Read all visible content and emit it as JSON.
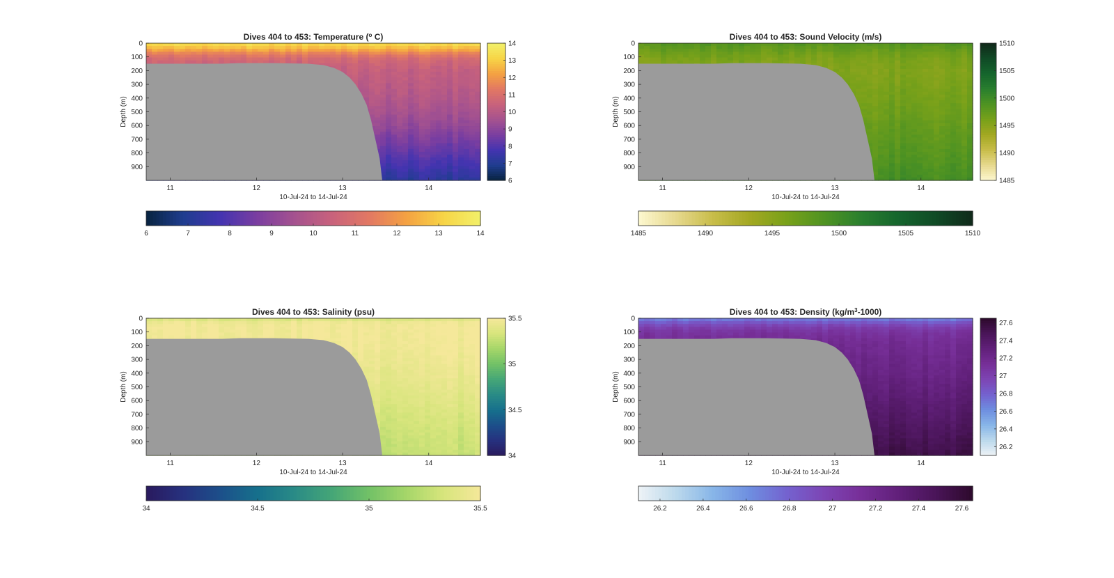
{
  "figure": {
    "background": "#ffffff",
    "land_color": "#9b9b9b"
  },
  "chart_data": [
    {
      "type": "heatmap",
      "title_parts": [
        "Dives 404 to 453: Temperature (",
        "o",
        " C)"
      ],
      "title_sup": true,
      "variable": "temperature",
      "xlabel": "10-Jul-24 to 14-Jul-24",
      "ylabel": "Depth (m)",
      "xlim": [
        10.72,
        14.6
      ],
      "ylim": [
        0,
        1000
      ],
      "x_ticks": [
        11,
        12,
        13,
        14
      ],
      "x_tick_labels": [
        "11",
        "12",
        "13",
        "14"
      ],
      "y_ticks": [
        0,
        100,
        200,
        300,
        400,
        500,
        600,
        700,
        800,
        900
      ],
      "y_tick_labels": [
        "0",
        "100",
        "200",
        "300",
        "400",
        "500",
        "600",
        "700",
        "800",
        "900"
      ],
      "clim": [
        6,
        14
      ],
      "colorbar_ticks": [
        6,
        7,
        8,
        9,
        10,
        11,
        12,
        13,
        14
      ],
      "colorbar_tick_labels": [
        "6",
        "7",
        "8",
        "9",
        "10",
        "11",
        "12",
        "13",
        "14"
      ],
      "colormap": [
        "#08233f",
        "#1f3d8f",
        "#4434b0",
        "#7b3ea0",
        "#a5528f",
        "#c8627c",
        "#e27863",
        "#f4a142",
        "#f7d446",
        "#f2f06a"
      ],
      "profile": {
        "depths": [
          0,
          40,
          80,
          120,
          200,
          400,
          600,
          800,
          1000
        ],
        "values": [
          13.4,
          12.6,
          11.4,
          10.7,
          10.3,
          9.9,
          9.2,
          8.2,
          7.2
        ]
      },
      "seafloor": {
        "x": [
          10.72,
          11.6,
          11.8,
          12.2,
          12.6,
          12.78,
          12.9,
          13.0,
          13.08,
          13.15,
          13.22,
          13.28,
          13.33,
          13.38,
          13.43,
          13.46,
          14.6
        ],
        "depth": [
          150,
          150,
          145,
          145,
          150,
          160,
          180,
          210,
          250,
          300,
          370,
          450,
          560,
          700,
          840,
          1000,
          1000
        ]
      }
    },
    {
      "type": "heatmap",
      "title_parts": [
        "Dives 404 to 453: Sound Velocity (m/s)"
      ],
      "variable": "sound_velocity",
      "xlabel": "10-Jul-24 to 14-Jul-24",
      "ylabel": "Depth (m)",
      "xlim": [
        10.72,
        14.6
      ],
      "ylim": [
        0,
        1000
      ],
      "x_ticks": [
        11,
        12,
        13,
        14
      ],
      "x_tick_labels": [
        "11",
        "12",
        "13",
        "14"
      ],
      "y_ticks": [
        0,
        100,
        200,
        300,
        400,
        500,
        600,
        700,
        800,
        900
      ],
      "y_tick_labels": [
        "0",
        "100",
        "200",
        "300",
        "400",
        "500",
        "600",
        "700",
        "800",
        "900"
      ],
      "clim": [
        1485,
        1510
      ],
      "colorbar_ticks": [
        1485,
        1490,
        1495,
        1500,
        1505,
        1510
      ],
      "colorbar_tick_labels": [
        "1485",
        "1490",
        "1495",
        "1500",
        "1505",
        "1510"
      ],
      "colormap": [
        "#fdf8d0",
        "#e7d98f",
        "#c8bd4a",
        "#a3a822",
        "#78a11a",
        "#4f9322",
        "#2a7f2e",
        "#15652d",
        "#104b26",
        "#102a1a"
      ],
      "profile": {
        "depths": [
          0,
          40,
          80,
          120,
          200,
          400,
          600,
          800,
          1000
        ],
        "values": [
          1498.5,
          1497.5,
          1496.5,
          1495.8,
          1495.4,
          1496.2,
          1497.3,
          1498.3,
          1499.5
        ]
      },
      "seafloor": {
        "x": [
          10.72,
          11.6,
          11.8,
          12.2,
          12.6,
          12.78,
          12.9,
          13.0,
          13.08,
          13.15,
          13.22,
          13.28,
          13.33,
          13.38,
          13.43,
          13.46,
          14.6
        ],
        "depth": [
          150,
          150,
          145,
          145,
          150,
          160,
          180,
          210,
          250,
          300,
          370,
          450,
          560,
          700,
          840,
          1000,
          1000
        ]
      }
    },
    {
      "type": "heatmap",
      "title_parts": [
        "Dives 404 to 453: Salinity (psu)"
      ],
      "variable": "salinity",
      "xlabel": "10-Jul-24 to 14-Jul-24",
      "ylabel": "Depth (m)",
      "xlim": [
        10.72,
        14.6
      ],
      "ylim": [
        0,
        1000
      ],
      "x_ticks": [
        11,
        12,
        13,
        14
      ],
      "x_tick_labels": [
        "11",
        "12",
        "13",
        "14"
      ],
      "y_ticks": [
        0,
        100,
        200,
        300,
        400,
        500,
        600,
        700,
        800,
        900
      ],
      "y_tick_labels": [
        "0",
        "100",
        "200",
        "300",
        "400",
        "500",
        "600",
        "700",
        "800",
        "900"
      ],
      "clim": [
        34,
        35.5
      ],
      "colorbar_ticks": [
        34,
        34.5,
        35,
        35.5
      ],
      "colorbar_tick_labels": [
        "34",
        "34.5",
        "35",
        "35.5"
      ],
      "colormap": [
        "#2a1a5e",
        "#26317f",
        "#1c4f8a",
        "#16708c",
        "#2a8b86",
        "#45a677",
        "#72c167",
        "#a5d669",
        "#d7e57c",
        "#f5e89a"
      ],
      "profile": {
        "depths": [
          0,
          20,
          60,
          100,
          200,
          400,
          600,
          800,
          1000
        ],
        "values": [
          35.3,
          35.45,
          35.5,
          35.49,
          35.48,
          35.44,
          35.38,
          35.32,
          35.28
        ]
      },
      "seafloor": {
        "x": [
          10.72,
          11.6,
          11.8,
          12.2,
          12.6,
          12.78,
          12.9,
          13.0,
          13.08,
          13.15,
          13.22,
          13.28,
          13.33,
          13.38,
          13.43,
          13.46,
          14.6
        ],
        "depth": [
          150,
          150,
          145,
          145,
          150,
          160,
          180,
          210,
          250,
          300,
          370,
          450,
          560,
          700,
          840,
          1000,
          1000
        ]
      }
    },
    {
      "type": "heatmap",
      "title_parts": [
        "Dives 404 to 453: Density (kg/m",
        "3",
        "-1000)"
      ],
      "title_sup": true,
      "variable": "density",
      "xlabel": "10-Jul-24 to 14-Jul-24",
      "ylabel": "Depth (m)",
      "xlim": [
        10.72,
        14.6
      ],
      "ylim": [
        0,
        1000
      ],
      "x_ticks": [
        11,
        12,
        13,
        14
      ],
      "x_tick_labels": [
        "11",
        "12",
        "13",
        "14"
      ],
      "y_ticks": [
        0,
        100,
        200,
        300,
        400,
        500,
        600,
        700,
        800,
        900
      ],
      "y_tick_labels": [
        "0",
        "100",
        "200",
        "300",
        "400",
        "500",
        "600",
        "700",
        "800",
        "900"
      ],
      "clim": [
        26.1,
        27.65
      ],
      "colorbar_ticks": [
        26.2,
        26.4,
        26.6,
        26.8,
        27,
        27.2,
        27.4,
        27.6
      ],
      "colorbar_tick_labels": [
        "26.2",
        "26.4",
        "26.6",
        "26.8",
        "27",
        "27.2",
        "27.4",
        "27.6"
      ],
      "colormap": [
        "#eef3f6",
        "#bcd9ec",
        "#88b6e8",
        "#6e8ee0",
        "#7462cf",
        "#7d45b4",
        "#772f98",
        "#61207a",
        "#4a1559",
        "#2d0a2c"
      ],
      "profile": {
        "depths": [
          0,
          40,
          80,
          120,
          200,
          400,
          600,
          800,
          1000
        ],
        "values": [
          26.65,
          26.9,
          27.05,
          27.12,
          27.18,
          27.25,
          27.35,
          27.45,
          27.55
        ]
      },
      "seafloor": {
        "x": [
          10.72,
          11.6,
          11.8,
          12.2,
          12.6,
          12.78,
          12.9,
          13.0,
          13.08,
          13.15,
          13.22,
          13.28,
          13.33,
          13.38,
          13.43,
          13.46,
          14.6
        ],
        "depth": [
          150,
          150,
          145,
          145,
          150,
          160,
          180,
          210,
          250,
          300,
          370,
          450,
          560,
          700,
          840,
          1000,
          1000
        ]
      }
    }
  ]
}
